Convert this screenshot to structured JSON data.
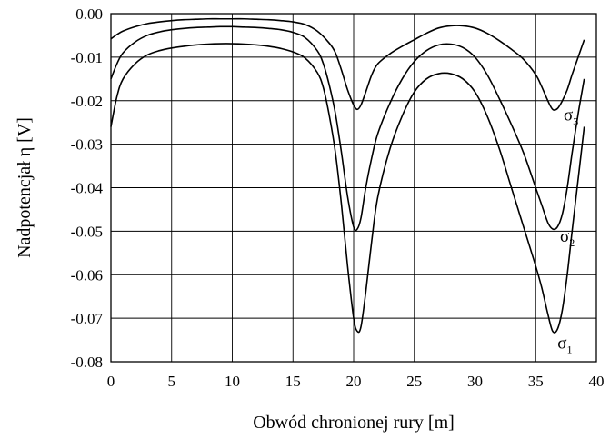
{
  "chart_data": {
    "type": "line",
    "title": "",
    "xlabel": "Obwód chronionej rury [m]",
    "ylabel": "Nadpotencjał η [V]",
    "xlim": [
      0,
      40
    ],
    "ylim": [
      -0.08,
      0.0
    ],
    "x_ticks": [
      0,
      5,
      10,
      15,
      20,
      25,
      30,
      35,
      40
    ],
    "x_tick_labels": [
      "0",
      "5",
      "10",
      "15",
      "20",
      "25",
      "30",
      "35",
      "40"
    ],
    "y_ticks": [
      0.0,
      -0.01,
      -0.02,
      -0.03,
      -0.04,
      -0.05,
      -0.06,
      -0.07,
      -0.08
    ],
    "y_tick_labels": [
      "0.00",
      "-0.01",
      "-0.02",
      "-0.03",
      "-0.04",
      "-0.05",
      "-0.06",
      "-0.07",
      "-0.08"
    ],
    "grid": true,
    "legend": "none",
    "series": [
      {
        "name": "σ3",
        "label_main": "σ",
        "label_sub": "3",
        "label_at": [
          37.3,
          -0.0245
        ],
        "x": [
          0,
          0.5,
          1,
          2,
          3,
          4,
          5,
          6,
          7,
          8,
          9,
          10,
          11,
          12,
          13,
          14,
          15,
          16,
          17,
          18,
          18.5,
          19,
          19.5,
          20,
          20.3,
          20.6,
          21,
          21.5,
          22,
          23,
          24,
          25,
          26,
          27,
          28,
          29,
          30,
          31,
          32,
          33,
          34,
          35,
          35.5,
          36,
          36.4,
          36.8,
          37.2,
          37.6,
          38,
          38.5,
          39
        ],
        "y": [
          -0.0058,
          -0.0048,
          -0.004,
          -0.003,
          -0.0023,
          -0.0019,
          -0.0016,
          -0.0014,
          -0.0013,
          -0.0012,
          -0.0012,
          -0.0012,
          -0.0012,
          -0.0013,
          -0.0014,
          -0.0016,
          -0.0019,
          -0.0025,
          -0.004,
          -0.0068,
          -0.009,
          -0.013,
          -0.0175,
          -0.021,
          -0.022,
          -0.021,
          -0.018,
          -0.014,
          -0.0115,
          -0.0092,
          -0.0075,
          -0.006,
          -0.0045,
          -0.0033,
          -0.0028,
          -0.0028,
          -0.0033,
          -0.0045,
          -0.0062,
          -0.0082,
          -0.0105,
          -0.014,
          -0.0168,
          -0.02,
          -0.022,
          -0.0218,
          -0.02,
          -0.0175,
          -0.014,
          -0.01,
          -0.006
        ]
      },
      {
        "name": "σ2",
        "label_main": "σ",
        "label_sub": "2",
        "label_at": [
          37.0,
          -0.0524
        ],
        "x": [
          0,
          0.5,
          1,
          2,
          3,
          4,
          5,
          6,
          7,
          8,
          9,
          10,
          11,
          12,
          13,
          14,
          15,
          16,
          17,
          17.5,
          18,
          18.5,
          19,
          19.5,
          20,
          20.3,
          20.6,
          21,
          21.5,
          22,
          23,
          24,
          25,
          26,
          27,
          28,
          29,
          30,
          31,
          32,
          33,
          34,
          35,
          35.5,
          36,
          36.4,
          36.8,
          37.2,
          37.6,
          38,
          38.5,
          39
        ],
        "y": [
          -0.015,
          -0.0115,
          -0.009,
          -0.0065,
          -0.005,
          -0.0042,
          -0.0037,
          -0.0034,
          -0.0032,
          -0.0031,
          -0.003,
          -0.003,
          -0.0031,
          -0.0032,
          -0.0034,
          -0.0037,
          -0.0043,
          -0.0055,
          -0.0085,
          -0.0115,
          -0.0165,
          -0.023,
          -0.032,
          -0.042,
          -0.049,
          -0.0495,
          -0.047,
          -0.04,
          -0.033,
          -0.0275,
          -0.0205,
          -0.015,
          -0.011,
          -0.0085,
          -0.0072,
          -0.007,
          -0.0078,
          -0.01,
          -0.014,
          -0.0195,
          -0.0255,
          -0.032,
          -0.04,
          -0.044,
          -0.048,
          -0.0495,
          -0.049,
          -0.046,
          -0.04,
          -0.032,
          -0.023,
          -0.015
        ]
      },
      {
        "name": "σ1",
        "label_main": "σ",
        "label_sub": "1",
        "label_at": [
          36.8,
          -0.077
        ],
        "x": [
          0,
          0.5,
          1,
          2,
          3,
          4,
          5,
          6,
          7,
          8,
          9,
          10,
          11,
          12,
          13,
          14,
          15,
          16,
          17,
          17.5,
          18,
          18.5,
          19,
          19.5,
          20,
          20.3,
          20.6,
          21,
          21.5,
          22,
          23,
          24,
          25,
          26,
          27,
          28,
          29,
          30,
          31,
          32,
          33,
          34,
          35,
          35.5,
          36,
          36.4,
          36.8,
          37.2,
          37.6,
          38,
          38.5,
          39
        ],
        "y": [
          -0.026,
          -0.019,
          -0.015,
          -0.0115,
          -0.0095,
          -0.0085,
          -0.0079,
          -0.0075,
          -0.0072,
          -0.007,
          -0.0069,
          -0.0069,
          -0.007,
          -0.0072,
          -0.0075,
          -0.008,
          -0.0088,
          -0.0102,
          -0.0135,
          -0.017,
          -0.0235,
          -0.032,
          -0.044,
          -0.058,
          -0.07,
          -0.073,
          -0.072,
          -0.064,
          -0.052,
          -0.042,
          -0.031,
          -0.0235,
          -0.018,
          -0.015,
          -0.0138,
          -0.0138,
          -0.015,
          -0.018,
          -0.0235,
          -0.031,
          -0.04,
          -0.049,
          -0.058,
          -0.063,
          -0.069,
          -0.073,
          -0.0725,
          -0.068,
          -0.06,
          -0.05,
          -0.038,
          -0.026
        ]
      }
    ]
  }
}
